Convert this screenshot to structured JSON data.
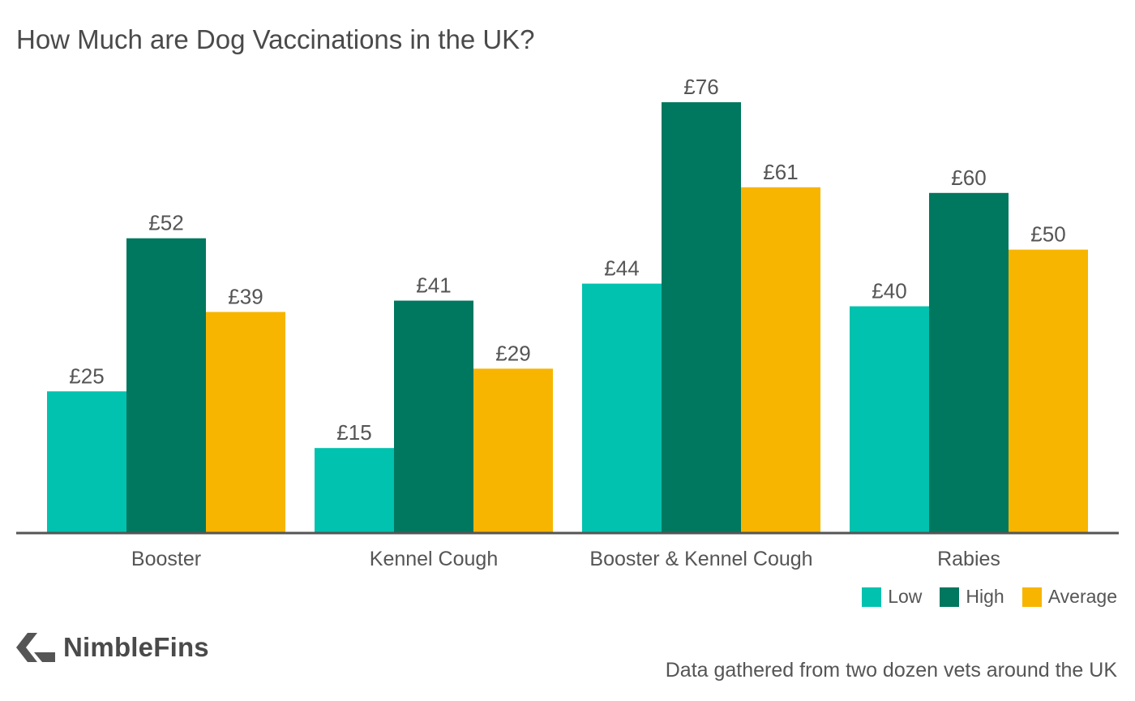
{
  "title": "How Much are Dog Vaccinations in the UK?",
  "source_note": "Data gathered from two dozen vets around the UK",
  "brand": {
    "name": "NimbleFins",
    "icon": "nimblefins-chevron-icon"
  },
  "colors": {
    "low": "#00C2AF",
    "high": "#00775F",
    "average": "#F7B500",
    "axis": "#555555",
    "label": "#555555"
  },
  "chart_data": {
    "type": "bar",
    "title": "How Much are Dog Vaccinations in the UK?",
    "categories": [
      "Booster",
      "Kennel Cough",
      "Booster & Kennel Cough",
      "Rabies"
    ],
    "series": [
      {
        "name": "Low",
        "values": [
          25,
          15,
          44,
          40
        ],
        "labels": [
          "£25",
          "£15",
          "£44",
          "£40"
        ]
      },
      {
        "name": "High",
        "values": [
          52,
          41,
          76,
          60
        ],
        "labels": [
          "£52",
          "£41",
          "£76",
          "£60"
        ]
      },
      {
        "name": "Average",
        "values": [
          39,
          29,
          61,
          50
        ],
        "labels": [
          "£39",
          "£29",
          "£61",
          "£50"
        ]
      }
    ],
    "ylim": [
      0,
      76
    ],
    "grid": false,
    "legend_position": "bottom-right",
    "xlabel": "",
    "ylabel": ""
  }
}
